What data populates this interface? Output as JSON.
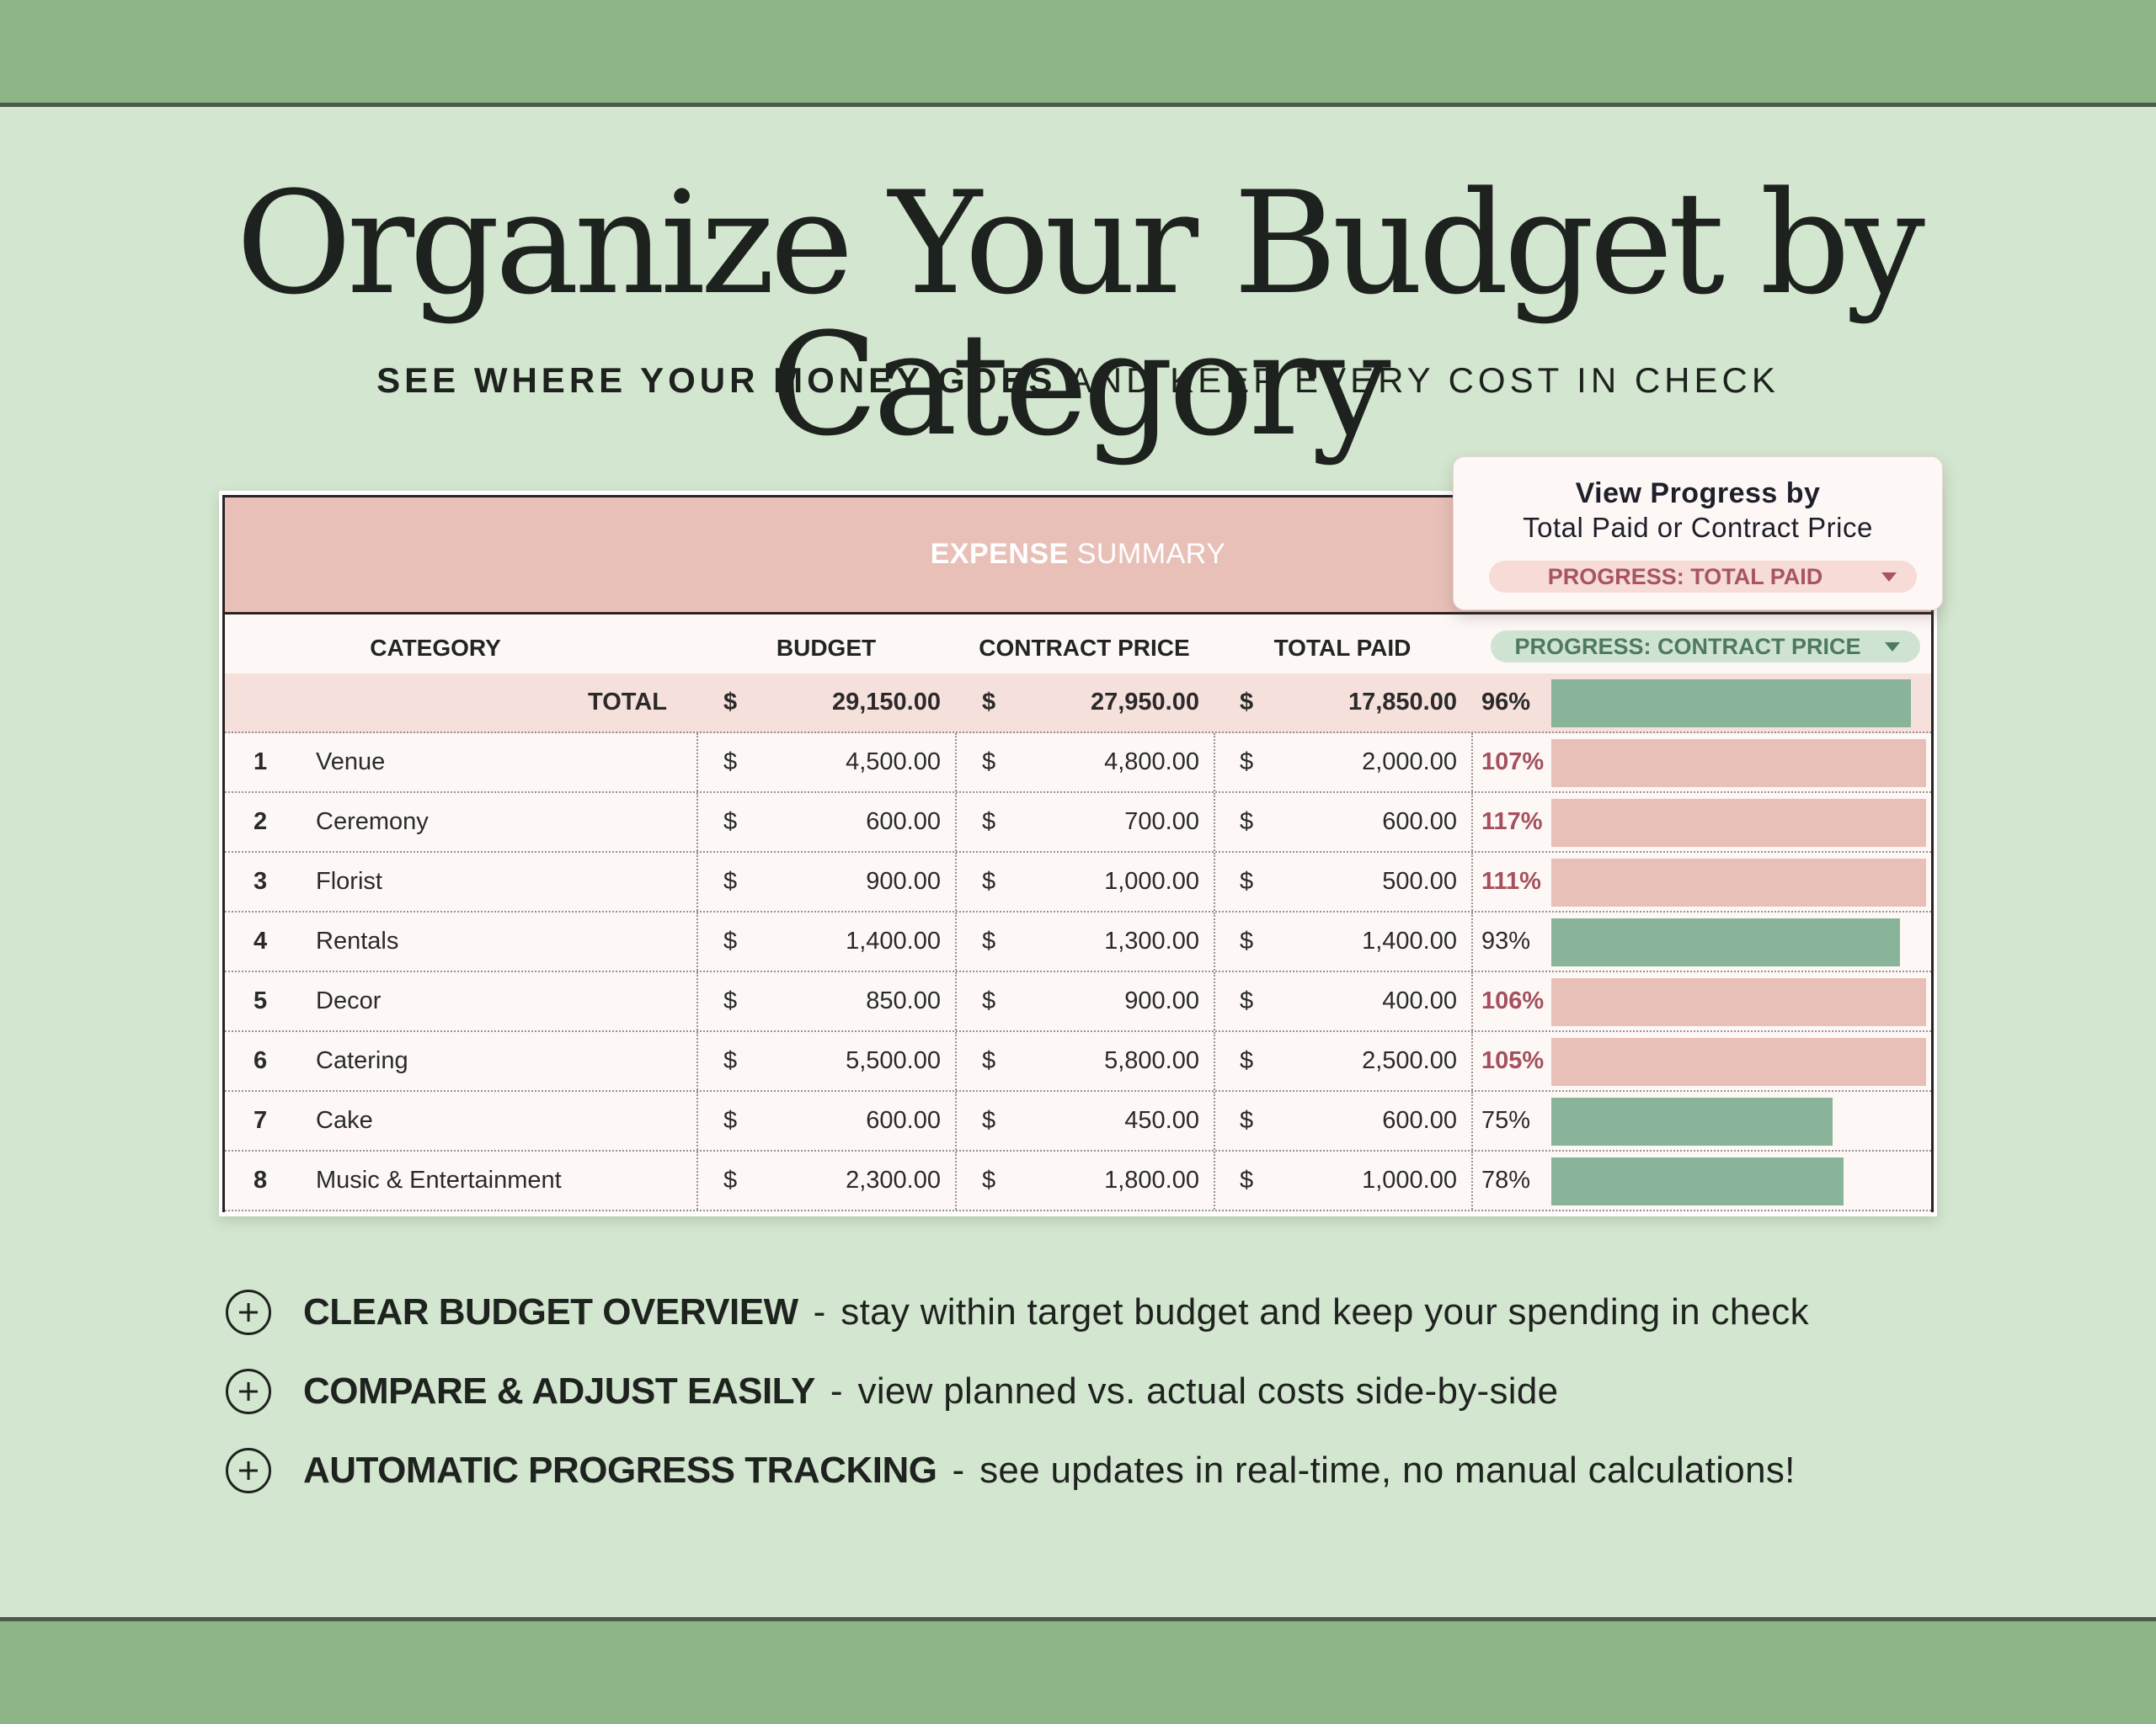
{
  "colors": {
    "band_green": "#8db585",
    "background": "#d3e6cf",
    "header_pink": "#e8c0b8",
    "total_row_pink": "#f6e0dc",
    "bar_green": "#8ab499",
    "bar_pink": "#e8c0b8",
    "over_budget_text": "#a5505c"
  },
  "hero": {
    "title": "Organize Your Budget by Category",
    "subtitle_strong": "SEE WHERE YOUR MONEY GOES",
    "subtitle_rest": " AND KEEP EVERY COST IN CHECK"
  },
  "table": {
    "title_strong": "EXPENSE",
    "title_rest": " SUMMARY",
    "columns": {
      "category": "CATEGORY",
      "budget": "BUDGET",
      "contract_price": "CONTRACT PRICE",
      "total_paid": "TOTAL PAID",
      "progress_select": "PROGRESS: CONTRACT PRICE"
    },
    "total": {
      "label": "TOTAL",
      "currency": "$",
      "budget": "29,150.00",
      "contract_price": "27,950.00",
      "total_paid": "17,850.00",
      "percent": "96%",
      "bar_pct": 96,
      "bar_color": "green"
    },
    "rows": [
      {
        "num": "1",
        "category": "Venue",
        "currency": "$",
        "budget": "4,500.00",
        "contract_price": "4,800.00",
        "total_paid": "2,000.00",
        "percent": "107%",
        "bar_pct": 100,
        "over": true
      },
      {
        "num": "2",
        "category": "Ceremony",
        "currency": "$",
        "budget": "600.00",
        "contract_price": "700.00",
        "total_paid": "600.00",
        "percent": "117%",
        "bar_pct": 100,
        "over": true
      },
      {
        "num": "3",
        "category": "Florist",
        "currency": "$",
        "budget": "900.00",
        "contract_price": "1,000.00",
        "total_paid": "500.00",
        "percent": "111%",
        "bar_pct": 100,
        "over": true
      },
      {
        "num": "4",
        "category": "Rentals",
        "currency": "$",
        "budget": "1,400.00",
        "contract_price": "1,300.00",
        "total_paid": "1,400.00",
        "percent": "93%",
        "bar_pct": 93,
        "over": false
      },
      {
        "num": "5",
        "category": "Decor",
        "currency": "$",
        "budget": "850.00",
        "contract_price": "900.00",
        "total_paid": "400.00",
        "percent": "106%",
        "bar_pct": 100,
        "over": true
      },
      {
        "num": "6",
        "category": "Catering",
        "currency": "$",
        "budget": "5,500.00",
        "contract_price": "5,800.00",
        "total_paid": "2,500.00",
        "percent": "105%",
        "bar_pct": 100,
        "over": true
      },
      {
        "num": "7",
        "category": "Cake",
        "currency": "$",
        "budget": "600.00",
        "contract_price": "450.00",
        "total_paid": "600.00",
        "percent": "75%",
        "bar_pct": 75,
        "over": false
      },
      {
        "num": "8",
        "category": "Music & Entertainment",
        "currency": "$",
        "budget": "2,300.00",
        "contract_price": "1,800.00",
        "total_paid": "1,000.00",
        "percent": "78%",
        "bar_pct": 78,
        "over": false
      }
    ]
  },
  "popup": {
    "title": "View Progress by",
    "subtitle": "Total Paid or Contract Price",
    "select_value": "PROGRESS: TOTAL PAID"
  },
  "features": [
    {
      "icon": "plus-circle-icon",
      "title": "CLEAR BUDGET OVERVIEW",
      "separator": "-",
      "description": "stay within target budget and keep your spending in check"
    },
    {
      "icon": "plus-circle-icon",
      "title": "COMPARE & ADJUST EASILY",
      "separator": "-",
      "description": "view planned vs. actual costs side-by-side"
    },
    {
      "icon": "plus-circle-icon",
      "title": "AUTOMATIC PROGRESS TRACKING",
      "separator": "-",
      "description": "see updates in real-time, no manual calculations!"
    }
  ]
}
